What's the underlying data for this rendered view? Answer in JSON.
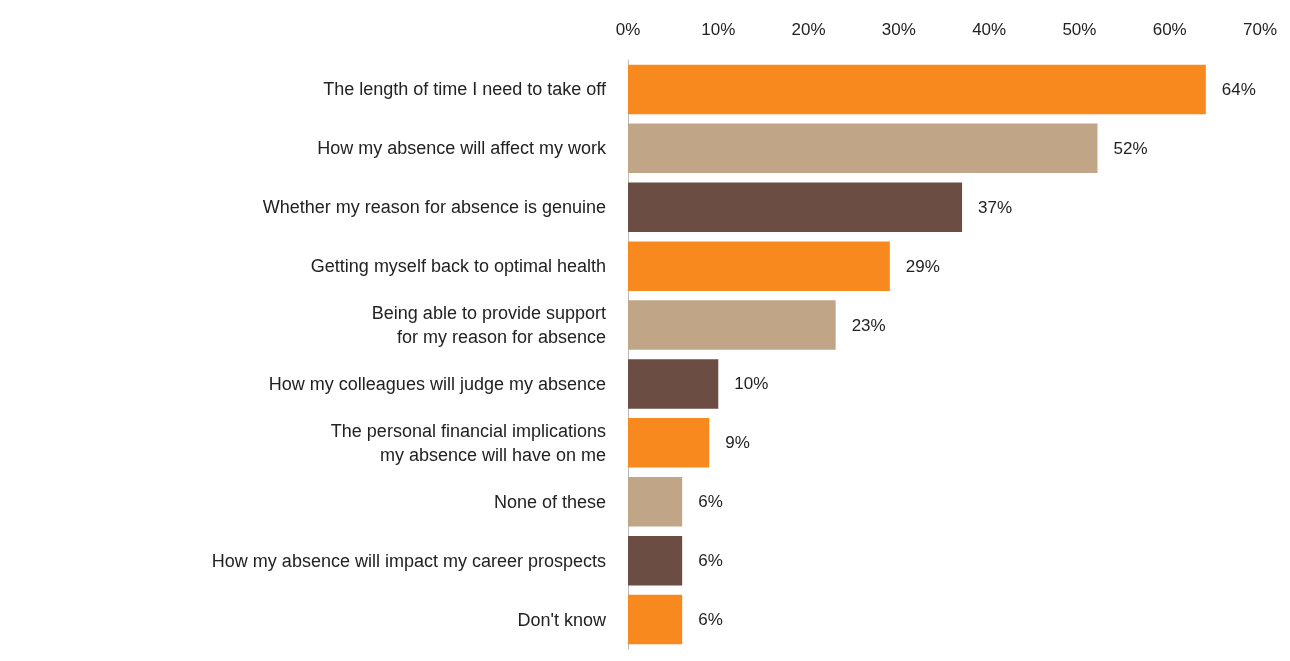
{
  "chart_data": {
    "type": "bar",
    "orientation": "horizontal",
    "categories": [
      "The length of time I need to take off",
      "How my absence will affect my work",
      "Whether my reason for absence is genuine",
      "Getting myself back to optimal health",
      "Being able to provide support\nfor my reason for absence",
      "How my colleagues will judge my absence",
      "The personal financial implications\nmy absence will have on me",
      "None of these",
      "How my absence will impact my career prospects",
      "Don't know"
    ],
    "values": [
      64,
      52,
      37,
      29,
      23,
      10,
      9,
      6,
      6,
      6
    ],
    "colors": [
      "#f7891f",
      "#c0a687",
      "#6b4d43",
      "#f7891f",
      "#c0a687",
      "#6b4d43",
      "#f7891f",
      "#c0a687",
      "#6b4d43",
      "#f7891f"
    ],
    "value_labels": [
      "64%",
      "52%",
      "37%",
      "29%",
      "23%",
      "10%",
      "9%",
      "6%",
      "6%",
      "6%"
    ],
    "xlim": [
      0,
      70
    ],
    "xticks": [
      {
        "value": 0,
        "label": "0%"
      },
      {
        "value": 10,
        "label": "10%"
      },
      {
        "value": 20,
        "label": "20%"
      },
      {
        "value": 30,
        "label": "30%"
      },
      {
        "value": 40,
        "label": "40%"
      },
      {
        "value": 50,
        "label": "50%"
      },
      {
        "value": 60,
        "label": "60%"
      },
      {
        "value": 70,
        "label": "70%"
      }
    ],
    "grid": false
  }
}
